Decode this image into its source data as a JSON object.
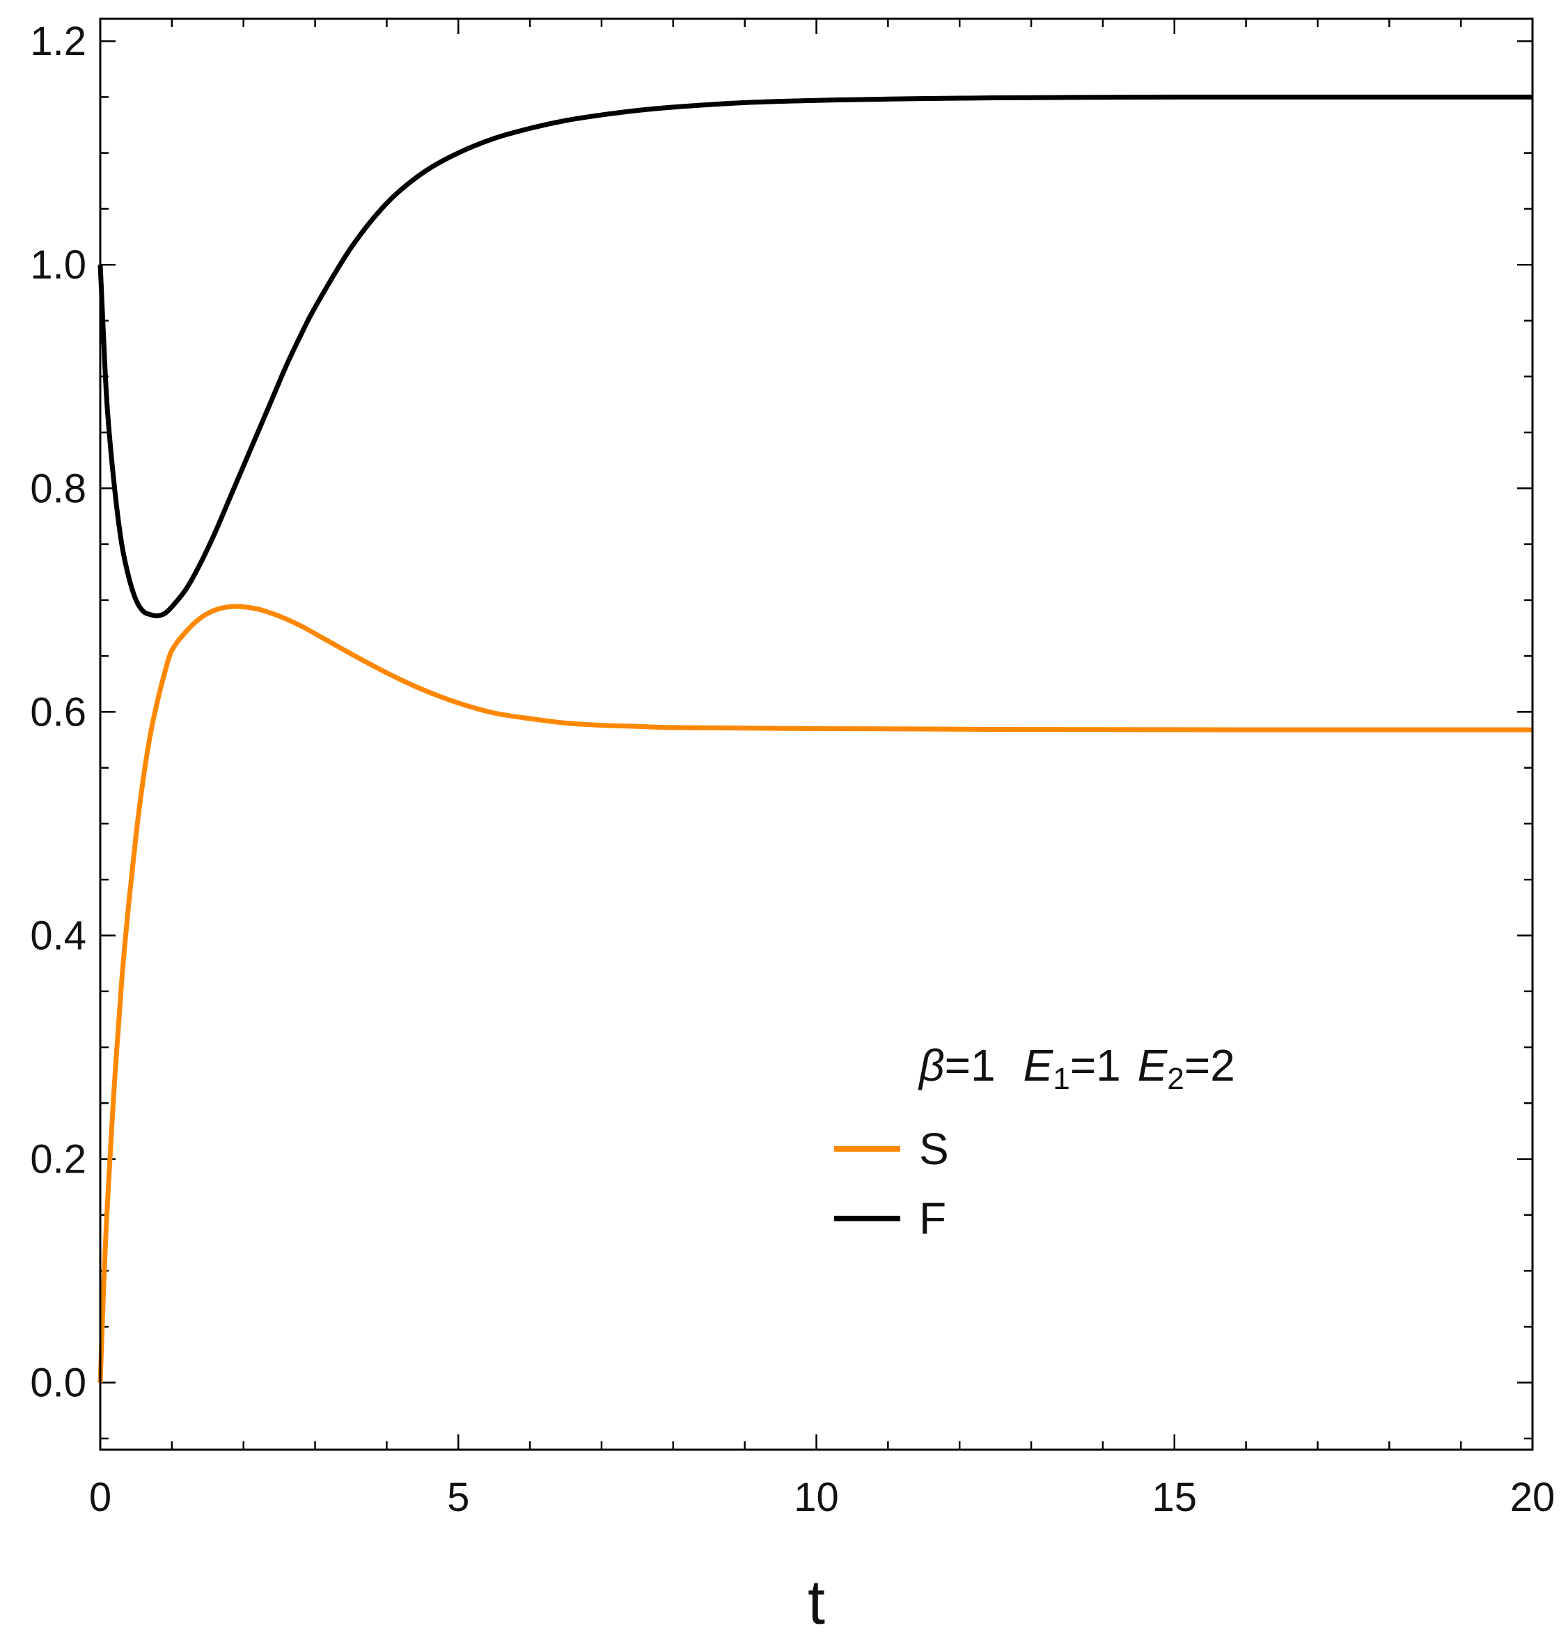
{
  "chart_data": {
    "type": "line",
    "xlabel": "t",
    "ylabel": "",
    "xlim": [
      0,
      20
    ],
    "ylim": [
      -0.06,
      1.22
    ],
    "x_ticks": [
      0,
      5,
      10,
      15,
      20
    ],
    "x_tick_labels": [
      "0",
      "5",
      "10",
      "15",
      "20"
    ],
    "y_ticks": [
      0.0,
      0.2,
      0.4,
      0.6,
      0.8,
      1.0,
      1.2
    ],
    "y_tick_labels": [
      "0.0",
      "0.2",
      "0.4",
      "0.6",
      "0.8",
      "1.0",
      "1.2"
    ],
    "grid": false,
    "legend": {
      "placement": "lower-right",
      "title": {
        "beta_symbol": "β",
        "beta_rest": "=1",
        "e_symbol": "E",
        "e1_sub": "1",
        "e1_rest": "=1",
        "e2_sub": "2",
        "e2_rest": "=2"
      }
    },
    "series": [
      {
        "name": "S",
        "color": "#ff8800",
        "x": [
          0,
          0.05,
          0.1,
          0.2,
          0.3,
          0.4,
          0.5,
          0.6,
          0.7,
          0.8,
          0.9,
          1.0,
          1.2,
          1.4,
          1.6,
          1.8,
          2.0,
          2.2,
          2.4,
          2.6,
          2.8,
          3.0,
          3.5,
          4.0,
          4.5,
          5.0,
          5.5,
          6.0,
          6.5,
          7.0,
          7.5,
          8.0,
          9.0,
          10.0,
          11.0,
          12.0,
          13.0,
          14.0,
          15.0,
          16.0,
          17.0,
          18.0,
          19.0,
          20.0
        ],
        "y": [
          0.0,
          0.09,
          0.16,
          0.27,
          0.36,
          0.43,
          0.49,
          0.54,
          0.58,
          0.61,
          0.635,
          0.655,
          0.672,
          0.684,
          0.691,
          0.694,
          0.694,
          0.692,
          0.688,
          0.683,
          0.677,
          0.67,
          0.652,
          0.635,
          0.62,
          0.608,
          0.599,
          0.594,
          0.59,
          0.588,
          0.587,
          0.586,
          0.5855,
          0.585,
          0.5848,
          0.5845,
          0.5843,
          0.5842,
          0.5841,
          0.584,
          0.584,
          0.584,
          0.584,
          0.584
        ]
      },
      {
        "name": "F",
        "color": "#000000",
        "x": [
          0,
          0.05,
          0.1,
          0.2,
          0.3,
          0.4,
          0.5,
          0.6,
          0.7,
          0.8,
          0.9,
          1.0,
          1.2,
          1.4,
          1.6,
          1.8,
          2.0,
          2.2,
          2.4,
          2.6,
          2.8,
          3.0,
          3.5,
          4.0,
          4.5,
          5.0,
          5.5,
          6.0,
          6.5,
          7.0,
          7.5,
          8.0,
          9.0,
          10.0,
          11.0,
          12.0,
          13.0,
          14.0,
          15.0,
          16.0,
          17.0,
          18.0,
          19.0,
          20.0
        ],
        "y": [
          1.0,
          0.93,
          0.87,
          0.8,
          0.75,
          0.72,
          0.7,
          0.69,
          0.687,
          0.686,
          0.688,
          0.694,
          0.71,
          0.733,
          0.76,
          0.79,
          0.82,
          0.85,
          0.88,
          0.91,
          0.937,
          0.962,
          1.015,
          1.055,
          1.082,
          1.1,
          1.113,
          1.122,
          1.129,
          1.134,
          1.138,
          1.141,
          1.145,
          1.147,
          1.1482,
          1.149,
          1.1495,
          1.1498,
          1.15,
          1.15,
          1.15,
          1.15,
          1.15,
          1.15
        ]
      }
    ]
  }
}
